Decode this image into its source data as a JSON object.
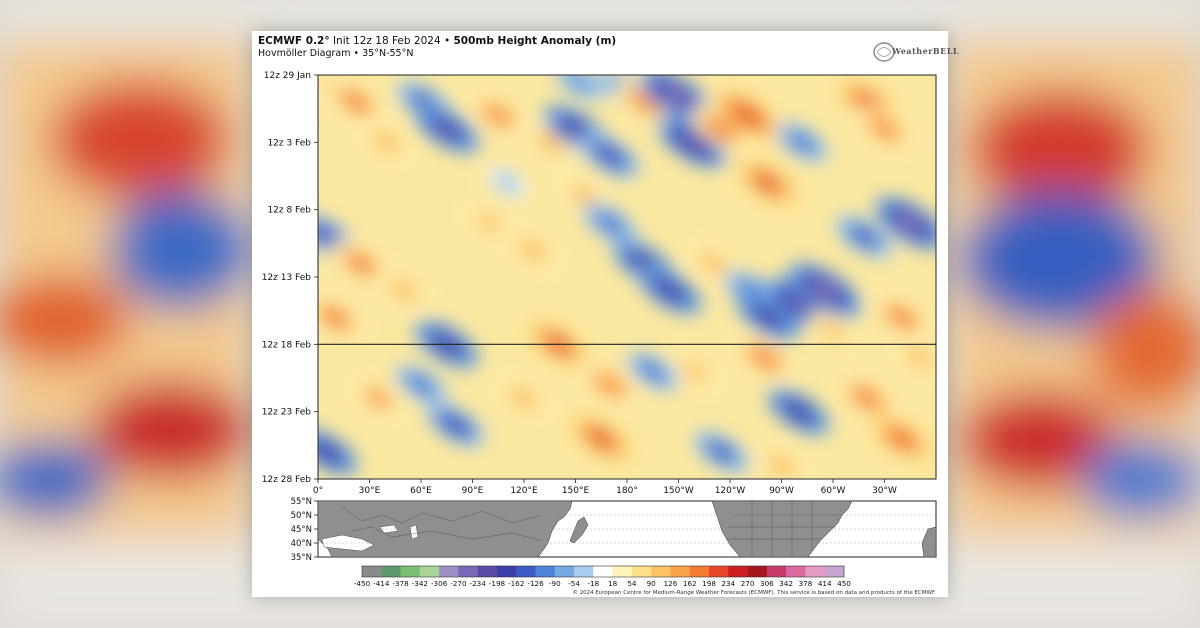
{
  "header": {
    "model": "ECMWF 0.2°",
    "init": "Init 12z 18 Feb 2024",
    "product": "500mb Height Anomaly (m)",
    "subtitle": "Hovmöller Diagram • 35°N-55°N",
    "logo": "WeatherBELL"
  },
  "footer": {
    "credit": "© 2024 European Centre for Medium-Range Weather Forecasts (ECMWF). This service is based on data and products of the ECMWF."
  },
  "chart_data": {
    "type": "heatmap",
    "title": "500mb Height Anomaly (m)",
    "x_ticks": [
      "0°",
      "30°E",
      "60°E",
      "90°E",
      "120°E",
      "150°E",
      "180°",
      "150°W",
      "120°W",
      "90°W",
      "60°W",
      "30°W"
    ],
    "x_tick_lon": [
      0,
      30,
      60,
      90,
      120,
      150,
      180,
      210,
      240,
      270,
      300,
      330
    ],
    "xlim": [
      0,
      360
    ],
    "y_ticks": [
      "12z 29 Jan",
      "12z 3 Feb",
      "12z 8 Feb",
      "12z 13 Feb",
      "12z 18 Feb",
      "12z 23 Feb",
      "12z 28 Feb"
    ],
    "y_tick_day": [
      0,
      5,
      10,
      15,
      20,
      25,
      30
    ],
    "init_line_label": "12z 18 Feb",
    "map_lat_ticks": [
      "55°N",
      "50°N",
      "45°N",
      "40°N",
      "35°N"
    ],
    "colorbar_ticks": [
      "-450",
      "-414",
      "-378",
      "-342",
      "-306",
      "-270",
      "-234",
      "-198",
      "-162",
      "-126",
      "-90",
      "-54",
      "-18",
      "18",
      "54",
      "90",
      "126",
      "162",
      "198",
      "234",
      "270",
      "306",
      "342",
      "378",
      "414",
      "450"
    ],
    "colorbar_colors": [
      "#8a8a8a",
      "#5f9a6a",
      "#7bbf73",
      "#a8d49a",
      "#9d8fc4",
      "#7a67b5",
      "#5a4aa5",
      "#3e3ea8",
      "#3b5cc6",
      "#4d83d8",
      "#74a9e4",
      "#a8cdf0",
      "#ffffff",
      "#fff3b8",
      "#fde08c",
      "#fcc466",
      "#f9a146",
      "#f47a32",
      "#e6462a",
      "#cc1f22",
      "#a8141f",
      "#c63a6a",
      "#d86aa0",
      "#e59ac4",
      "#c6a6cf"
    ],
    "anomaly_centers": [
      {
        "lon": 8,
        "day": 1,
        "value": 160
      },
      {
        "lon": 22,
        "day": 2,
        "value": 200
      },
      {
        "lon": 62,
        "day": 2,
        "value": -170
      },
      {
        "lon": 75,
        "day": 4,
        "value": -240
      },
      {
        "lon": 40,
        "day": 5,
        "value": 150
      },
      {
        "lon": 105,
        "day": 3,
        "value": 180
      },
      {
        "lon": 152,
        "day": 0.5,
        "value": -110
      },
      {
        "lon": 135,
        "day": 5,
        "value": 140
      },
      {
        "lon": 150,
        "day": 4,
        "value": -230
      },
      {
        "lon": 170,
        "day": 6,
        "value": -200
      },
      {
        "lon": 178,
        "day": 1,
        "value": -130
      },
      {
        "lon": 190,
        "day": 2,
        "value": 180
      },
      {
        "lon": 208,
        "day": 1.5,
        "value": -280
      },
      {
        "lon": 218,
        "day": 5,
        "value": -260
      },
      {
        "lon": 235,
        "day": 4,
        "value": 200
      },
      {
        "lon": 250,
        "day": 3,
        "value": 260
      },
      {
        "lon": 262,
        "day": 8,
        "value": 240
      },
      {
        "lon": 282,
        "day": 5,
        "value": -140
      },
      {
        "lon": 320,
        "day": 2,
        "value": 220
      },
      {
        "lon": 330,
        "day": 4,
        "value": 180
      },
      {
        "lon": 345,
        "day": 11,
        "value": -280
      },
      {
        "lon": 318,
        "day": 12,
        "value": -180
      },
      {
        "lon": 5,
        "day": 12,
        "value": -200
      },
      {
        "lon": 25,
        "day": 14,
        "value": 200
      },
      {
        "lon": 10,
        "day": 18,
        "value": 200
      },
      {
        "lon": 50,
        "day": 16,
        "value": 150
      },
      {
        "lon": 100,
        "day": 11,
        "value": 120
      },
      {
        "lon": 125,
        "day": 13,
        "value": 160
      },
      {
        "lon": 155,
        "day": 9,
        "value": 130
      },
      {
        "lon": 170,
        "day": 11,
        "value": -160
      },
      {
        "lon": 190,
        "day": 14,
        "value": -220
      },
      {
        "lon": 205,
        "day": 16,
        "value": -230
      },
      {
        "lon": 230,
        "day": 14,
        "value": 140
      },
      {
        "lon": 252,
        "day": 16,
        "value": -150
      },
      {
        "lon": 262,
        "day": 18,
        "value": -220
      },
      {
        "lon": 280,
        "day": 17,
        "value": -260
      },
      {
        "lon": 295,
        "day": 16,
        "value": -300
      },
      {
        "lon": 340,
        "day": 18,
        "value": 200
      },
      {
        "lon": 75,
        "day": 20,
        "value": -230
      },
      {
        "lon": 60,
        "day": 23,
        "value": -140
      },
      {
        "lon": 80,
        "day": 26,
        "value": -190
      },
      {
        "lon": 35,
        "day": 24,
        "value": 170
      },
      {
        "lon": 5,
        "day": 28,
        "value": -220
      },
      {
        "lon": 140,
        "day": 20,
        "value": 240
      },
      {
        "lon": 120,
        "day": 24,
        "value": 160
      },
      {
        "lon": 170,
        "day": 23,
        "value": 180
      },
      {
        "lon": 165,
        "day": 27,
        "value": 250
      },
      {
        "lon": 195,
        "day": 22,
        "value": -140
      },
      {
        "lon": 220,
        "day": 22,
        "value": 120
      },
      {
        "lon": 235,
        "day": 28,
        "value": -170
      },
      {
        "lon": 260,
        "day": 21,
        "value": 200
      },
      {
        "lon": 280,
        "day": 25,
        "value": -220
      },
      {
        "lon": 270,
        "day": 29,
        "value": 150
      },
      {
        "lon": 320,
        "day": 24,
        "value": 210
      },
      {
        "lon": 340,
        "day": 27,
        "value": 220
      },
      {
        "lon": 350,
        "day": 21,
        "value": 140
      },
      {
        "lon": 300,
        "day": 19,
        "value": 120
      },
      {
        "lon": 110,
        "day": 8,
        "value": -60
      }
    ]
  }
}
